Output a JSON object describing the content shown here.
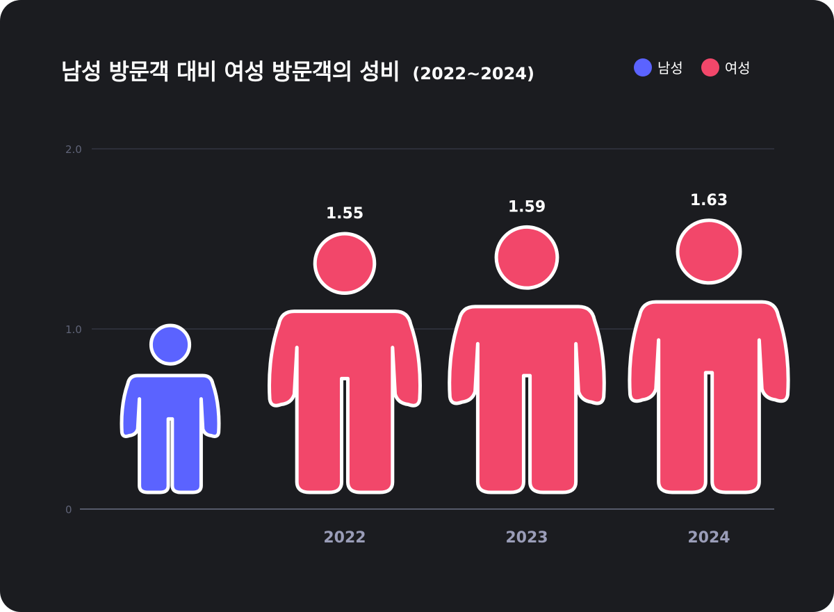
{
  "header": {
    "title": "남성 방문객 대비 여성 방문객의 성비",
    "subtitle": "(2022~2024)"
  },
  "legend": {
    "items": [
      {
        "label": "남성",
        "color": "#5b63ff"
      },
      {
        "label": "여성",
        "color": "#f2476a"
      }
    ]
  },
  "chart_data": {
    "type": "bar",
    "title": "남성 방문객 대비 여성 방문객의 성비",
    "subtitle": "(2022~2024)",
    "ylim": [
      0,
      2.0
    ],
    "yticks": [
      "0",
      "1.0",
      "2.0"
    ],
    "grid": true,
    "legend_position": "top-right",
    "baseline": {
      "name": "남성",
      "value": 1.0,
      "color": "#5b63ff"
    },
    "categories": [
      "2022",
      "2023",
      "2024"
    ],
    "series": [
      {
        "name": "여성",
        "color": "#f2476a",
        "values": [
          1.55,
          1.59,
          1.63
        ],
        "labels": [
          "1.55",
          "1.59",
          "1.63"
        ]
      }
    ]
  }
}
